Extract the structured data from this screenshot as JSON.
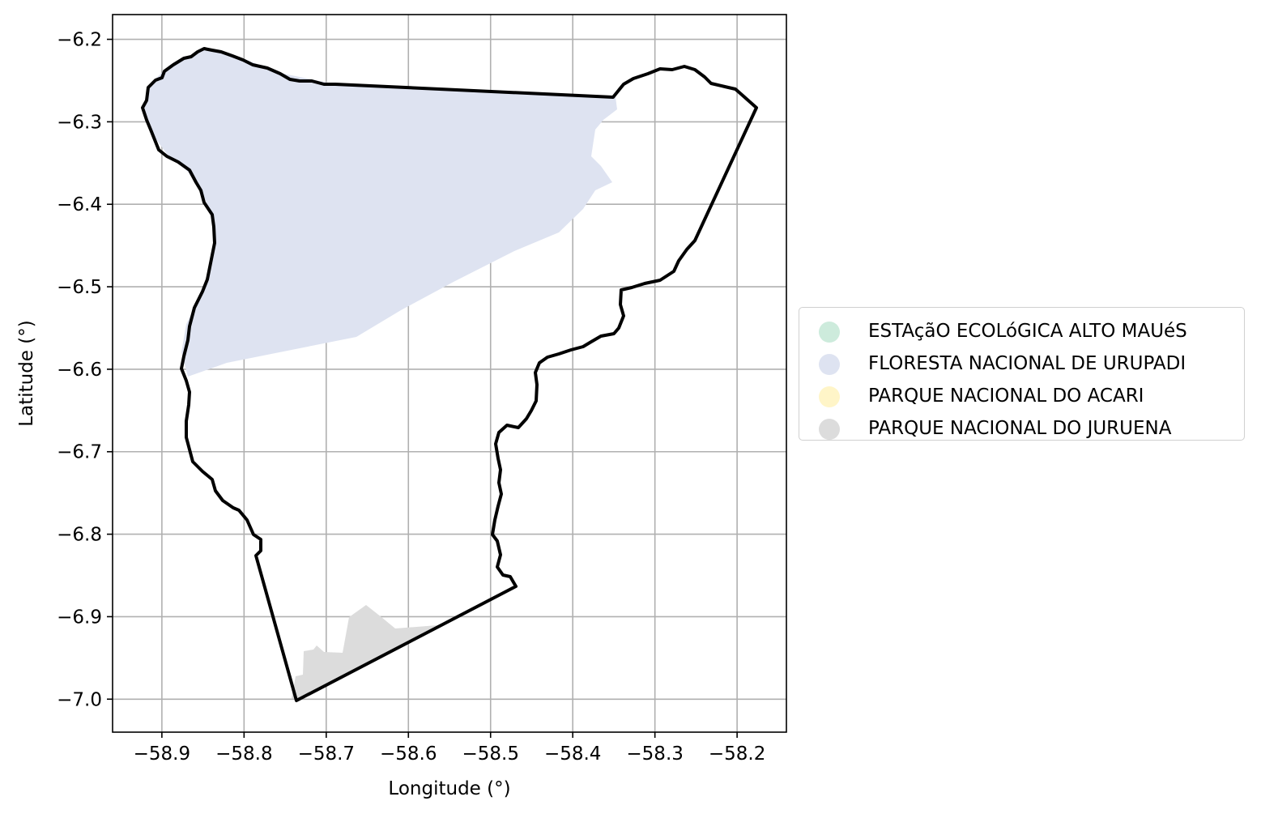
{
  "map": {
    "xlabel": "Longitude (°)",
    "ylabel": "Latitude (°)",
    "x_ticks": [
      "−58.9",
      "−58.8",
      "−58.7",
      "−58.6",
      "−58.5",
      "−58.4",
      "−58.3",
      "−58.2"
    ],
    "y_ticks": [
      "−6.2",
      "−6.3",
      "−6.4",
      "−6.5",
      "−6.6",
      "−6.7",
      "−6.8",
      "−6.9",
      "−7.0"
    ],
    "grid": true
  },
  "legend": {
    "placement": "right",
    "items": [
      {
        "label": "ESTAçãO ECOLóGICA ALTO MAUéS",
        "color": "#cdebdc"
      },
      {
        "label": "FLORESTA NACIONAL DE URUPADI",
        "color": "#dee3f1"
      },
      {
        "label": "PARQUE NACIONAL DO ACARI",
        "color": "#fff5c8"
      },
      {
        "label": "PARQUE NACIONAL DO JURUENA",
        "color": "#dcdcdc"
      }
    ]
  },
  "chart_data": {
    "type": "map",
    "xlabel": "Longitude (°)",
    "ylabel": "Latitude (°)",
    "xlim": [
      -58.96,
      -58.14
    ],
    "ylim": [
      -7.04,
      -6.17
    ],
    "x_ticks": [
      -58.9,
      -58.8,
      -58.7,
      -58.6,
      -58.5,
      -58.4,
      -58.3,
      -58.2
    ],
    "y_ticks": [
      -6.2,
      -6.3,
      -6.4,
      -6.5,
      -6.6,
      -6.7,
      -6.8,
      -6.9,
      -7.0
    ],
    "grid": true,
    "outline_color": "#000000",
    "layers": [
      {
        "name": "FLORESTA NACIONAL DE URUPADI",
        "color": "#dee3f1"
      },
      {
        "name": "PARQUE NACIONAL DO JURUENA",
        "color": "#dcdcdc"
      }
    ]
  }
}
